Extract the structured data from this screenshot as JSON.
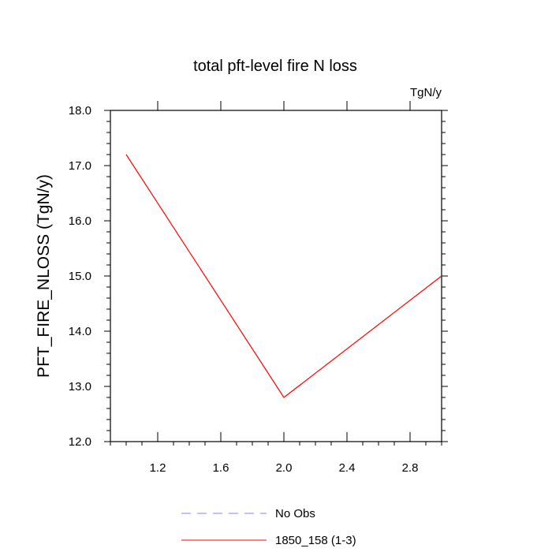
{
  "chart_data": {
    "type": "line",
    "title": "total pft-level fire N loss",
    "units_label": "TgN/y",
    "xlabel": "",
    "ylabel": "PFT_FIRE_NLOSS  (TgN/y)",
    "xlim": [
      0.9,
      3.0
    ],
    "ylim": [
      12.0,
      18.0
    ],
    "xticks": [
      1.2,
      1.6,
      2.0,
      2.4,
      2.8
    ],
    "xtick_labels": [
      "1.2",
      "1.6",
      "2.0",
      "2.4",
      "2.8"
    ],
    "yticks": [
      12.0,
      13.0,
      14.0,
      15.0,
      16.0,
      17.0,
      18.0
    ],
    "ytick_labels": [
      "12.0",
      "13.0",
      "14.0",
      "15.0",
      "16.0",
      "17.0",
      "18.0"
    ],
    "grid": false,
    "legend_position": "bottom",
    "series": [
      {
        "name": "No Obs",
        "x": [],
        "y": [],
        "color": "#8080ff",
        "dash": "dashed"
      },
      {
        "name": "1850_158 (1-3)",
        "x": [
          1.0,
          2.0,
          3.0
        ],
        "y": [
          17.2,
          12.8,
          15.0
        ],
        "color": "#ff0000",
        "dash": "solid"
      }
    ]
  }
}
